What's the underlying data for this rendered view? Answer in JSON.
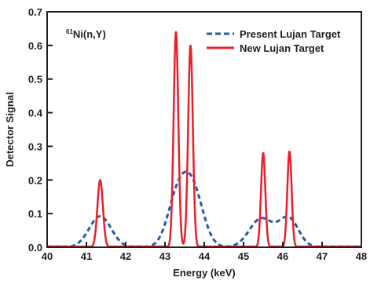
{
  "chart_data": {
    "type": "line",
    "title": "",
    "xlabel": "Energy (keV)",
    "ylabel": "Detector Signal",
    "xlim": [
      40,
      48
    ],
    "ylim": [
      0,
      0.7
    ],
    "xticks": [
      40,
      41,
      42,
      43,
      44,
      45,
      46,
      47,
      48
    ],
    "yticks": [
      0.0,
      0.1,
      0.2,
      0.3,
      0.4,
      0.5,
      0.6,
      0.7
    ],
    "ytick_labels": [
      "0.0",
      "0.1",
      "0.2",
      "0.3",
      "0.4",
      "0.5",
      "0.6",
      "0.7"
    ],
    "grid": false,
    "legend_position": "top-right",
    "annotation": {
      "superscript": "61",
      "text": "Ni(n,Y)"
    },
    "series": [
      {
        "name": "Present Lujan Target",
        "color": "#1f5fa8",
        "style": "dashed",
        "peaks": [
          {
            "center": 41.35,
            "height": 0.092,
            "width": 0.28
          },
          {
            "center": 43.3,
            "height": 0.13,
            "width": 0.25
          },
          {
            "center": 43.7,
            "height": 0.17,
            "width": 0.27
          },
          {
            "center": 45.45,
            "height": 0.085,
            "width": 0.3
          },
          {
            "center": 46.15,
            "height": 0.085,
            "width": 0.25
          }
        ]
      },
      {
        "name": "New Lujan Target",
        "color": "#e8202a",
        "style": "solid",
        "peaks": [
          {
            "center": 41.35,
            "height": 0.2,
            "width": 0.07
          },
          {
            "center": 43.28,
            "height": 0.64,
            "width": 0.06
          },
          {
            "center": 43.65,
            "height": 0.6,
            "width": 0.06
          },
          {
            "center": 45.5,
            "height": 0.28,
            "width": 0.055
          },
          {
            "center": 46.17,
            "height": 0.285,
            "width": 0.055
          }
        ]
      }
    ]
  }
}
